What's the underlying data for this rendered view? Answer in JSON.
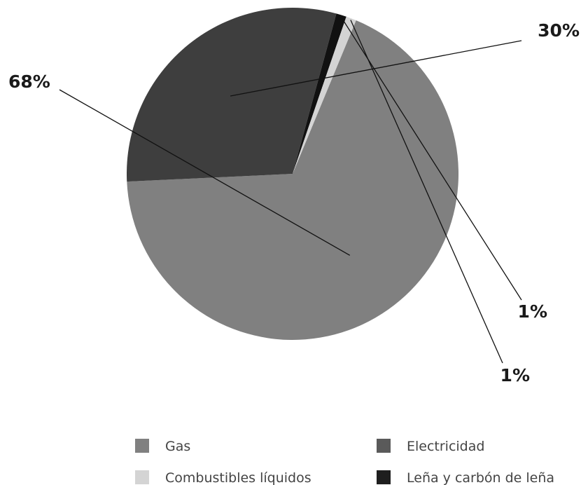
{
  "chart_data": {
    "type": "pie",
    "slices": [
      {
        "name": "Gas",
        "value": 68,
        "label": "68%",
        "color": "#808080"
      },
      {
        "name": "Electricidad",
        "value": 30,
        "label": "30%",
        "color": "#3e3e3e"
      },
      {
        "name": "Leña y carbón de leña",
        "value": 1,
        "label": "1%",
        "color": "#111111"
      },
      {
        "name": "Combustibles  líquidos",
        "value": 1,
        "label": "1%",
        "color": "#d4d4d4"
      }
    ],
    "legend": [
      {
        "name": "Gas",
        "color": "#808080"
      },
      {
        "name": "Electricidad",
        "color": "#5a5a5a"
      },
      {
        "name": "Combustibles  líquidos",
        "color": "#d4d4d4"
      },
      {
        "name": "Leña y carbón de leña",
        "color": "#1e1e1e"
      }
    ],
    "legend_position": "bottom"
  }
}
